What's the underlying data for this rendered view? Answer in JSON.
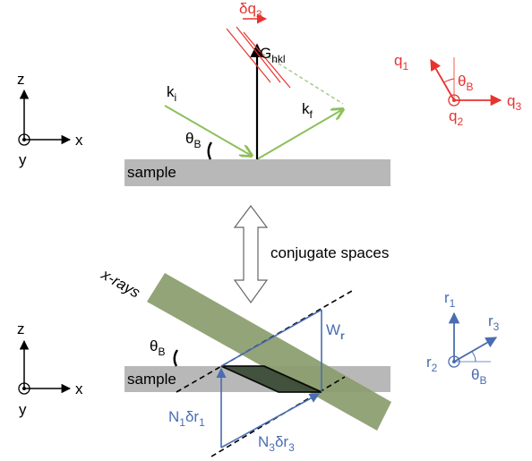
{
  "top": {
    "axes": {
      "z": "z",
      "x": "x",
      "y": "y"
    },
    "sample_label": "sample",
    "theta": {
      "main": "θ",
      "sub": "B"
    },
    "k_i": {
      "main": "k",
      "sub": "i"
    },
    "k_f": {
      "main": "k",
      "sub": "f"
    },
    "g_hkl": {
      "main": "G",
      "sub": "hkl"
    },
    "delta_q3": {
      "main": "δq",
      "sub": "3"
    },
    "q_axes": {
      "q1": {
        "main": "q",
        "sub": "1"
      },
      "q2": {
        "main": "q",
        "sub": "2"
      },
      "q3": {
        "main": "q",
        "sub": "3"
      },
      "theta": {
        "main": "θ",
        "sub": "B"
      }
    }
  },
  "middle": {
    "label": "conjugate spaces"
  },
  "bottom": {
    "axes": {
      "z": "z",
      "x": "x",
      "y": "y"
    },
    "sample_label": "sample",
    "xrays_label": "x-rays",
    "theta": {
      "main": "θ",
      "sub": "B"
    },
    "w_r": {
      "main": "W",
      "sub": "r"
    },
    "n1_dr1": {
      "a": "N",
      "a_sub": "1",
      "b": "δr",
      "b_sub": "1"
    },
    "n3_dr3": {
      "a": "N",
      "a_sub": "3",
      "b": "δr",
      "b_sub": "3"
    },
    "r_axes": {
      "r1": {
        "main": "r",
        "sub": "1"
      },
      "r2": {
        "main": "r",
        "sub": "2"
      },
      "r3": {
        "main": "r",
        "sub": "3"
      },
      "theta": {
        "main": "θ",
        "sub": "B"
      }
    }
  },
  "colors": {
    "green": "#8dc05a",
    "red": "#e8332f",
    "blue": "#4a6db1",
    "black": "#000000",
    "sample_gray": "#b8b8b8",
    "beam_green": "#8a9c6c",
    "parallelogram": "#3a4a34"
  }
}
